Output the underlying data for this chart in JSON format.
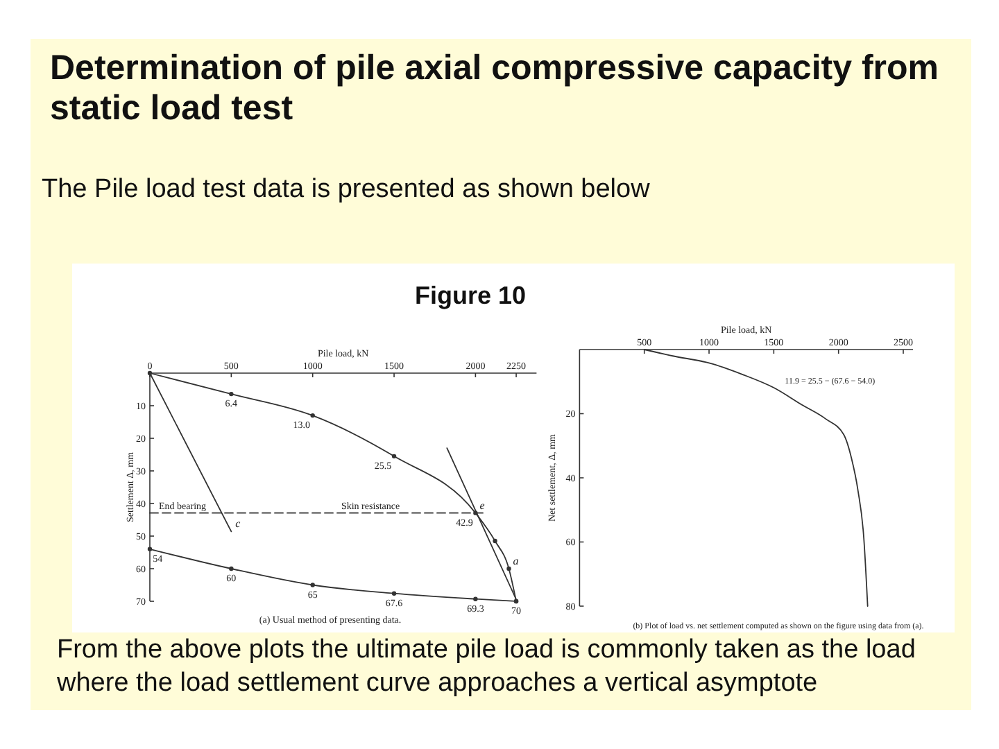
{
  "chart_data": [
    {
      "type": "line",
      "title": "Determination of pile axial compressive capacity from static load test",
      "subtitle": "The Pile load test data is presented as shown below",
      "xlabel": "Pile load, kN",
      "ylabel": "Settlement Δ, mm",
      "xlim": [
        0,
        2375
      ],
      "xticks": [
        0,
        500,
        1000,
        1500,
        2000,
        2250
      ],
      "ylim": [
        70,
        0
      ],
      "yticks": [
        10,
        20,
        30,
        40,
        50,
        60,
        70
      ],
      "series": [
        {
          "x": [
            0,
            500,
            1000,
            1500,
            2000,
            2120,
            2205,
            2250
          ],
          "values": [
            0,
            6.4,
            13.0,
            25.5,
            42.9,
            51.5,
            60,
            70
          ],
          "color": "#333333",
          "marker": "circle",
          "value_labels": [
            null,
            "6.4",
            "13.0",
            "25.5",
            "42.9",
            null,
            null,
            null
          ]
        },
        {
          "x": [
            0,
            500,
            1000,
            1500,
            2000,
            2250
          ],
          "values": [
            54,
            60,
            65,
            67.6,
            69.3,
            70
          ],
          "color": "#333333",
          "marker": "circle",
          "value_labels": [
            "54",
            "60",
            "65",
            "67.6",
            "69.3",
            "70"
          ]
        },
        {
          "x": [
            0,
            500
          ],
          "values": [
            0,
            48.6
          ],
          "color": "#333333"
        },
        {
          "x": [
            1825,
            2255
          ],
          "values": [
            23,
            70
          ],
          "color": "#333333"
        },
        {
          "x": [
            0,
            2060
          ],
          "values": [
            42.9,
            42.9
          ],
          "color": "#333333",
          "line_style": "dashed"
        }
      ],
      "annotations": [
        "Figure 10",
        "(a) Usual method of presenting data.",
        {
          "text": "c",
          "x": 500,
          "y": 48.6
        },
        {
          "text": "e",
          "x": 2000,
          "y": 42.9
        },
        {
          "text": "a",
          "x": 2205,
          "y": 60
        },
        {
          "text": "End bearing",
          "x": 30,
          "y": 42.9
        },
        {
          "text": "Skin resistance",
          "x": 1150,
          "y": 42.9
        }
      ]
    },
    {
      "type": "line",
      "xlabel": "Pile load, kN",
      "ylabel": "Net settlement, Δ, mm",
      "xlim": [
        0,
        2575
      ],
      "xticks": [
        500,
        1000,
        1500,
        2000,
        2500
      ],
      "ylim": [
        80,
        0
      ],
      "yticks": [
        20,
        40,
        60,
        80
      ],
      "series": [
        {
          "x": [
            500,
            720,
            1000,
            1260,
            1500,
            1720,
            1900,
            2040,
            2100,
            2150,
            2195,
            2225
          ],
          "values": [
            0,
            2.0,
            4.2,
            7.8,
            11.9,
            17.3,
            21.6,
            26.5,
            33.9,
            43.9,
            58.6,
            80
          ],
          "color": "#333333"
        }
      ],
      "annotations": [
        "(b) Plot of load vs. net settlement computed as shown on the figure using data from (a).",
        {
          "text": "11.9 = 25.5 − (67.6 − 54.0)",
          "x": 1500,
          "y": 11.9
        },
        "From the above plots the ultimate pile load is commonly taken as the load where the load settlement curve approaches a vertical asymptote"
      ]
    }
  ]
}
